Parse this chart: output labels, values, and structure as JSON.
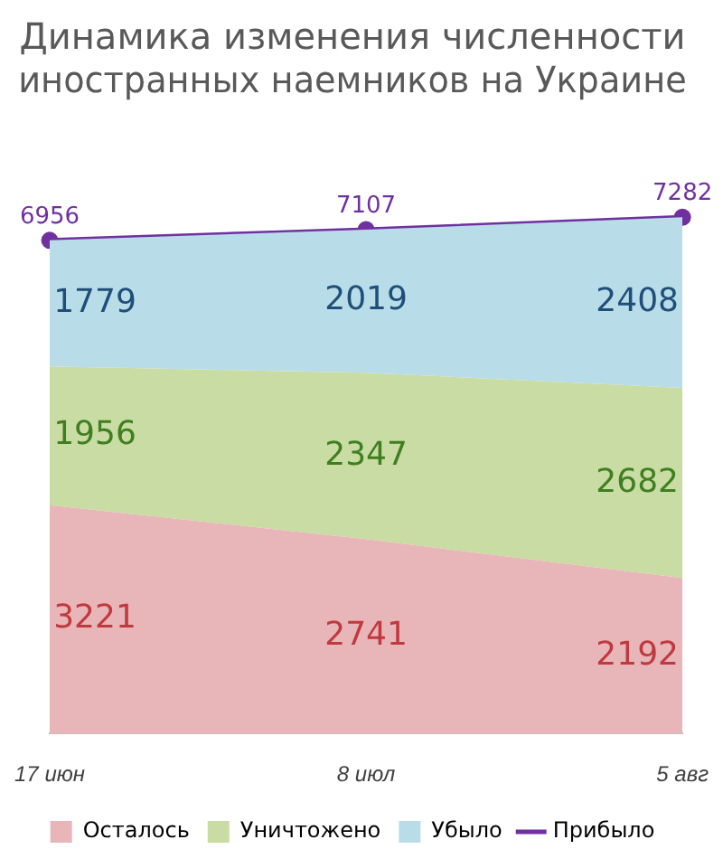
{
  "chart_data": {
    "type": "area",
    "title": "Динамика изменения численности\nиностранных наемников на Украине",
    "categories": [
      "17 июн",
      "8 июл",
      "5 авг"
    ],
    "stacked": true,
    "data_labels": true,
    "legend": "bottom",
    "series": [
      {
        "name": "Осталось",
        "color": "#e8b5b8",
        "values": [
          3221,
          2741,
          2192
        ]
      },
      {
        "name": "Уничтожено",
        "color": "#c8dca4",
        "values": [
          1956,
          2347,
          2682
        ]
      },
      {
        "name": "Убыло",
        "color": "#b8dde9",
        "values": [
          1779,
          2019,
          2408
        ]
      },
      {
        "name": "Прибыло",
        "type": "line",
        "color": "#7030a0",
        "marker": "circle",
        "values": [
          6956,
          7107,
          7282
        ]
      }
    ]
  }
}
